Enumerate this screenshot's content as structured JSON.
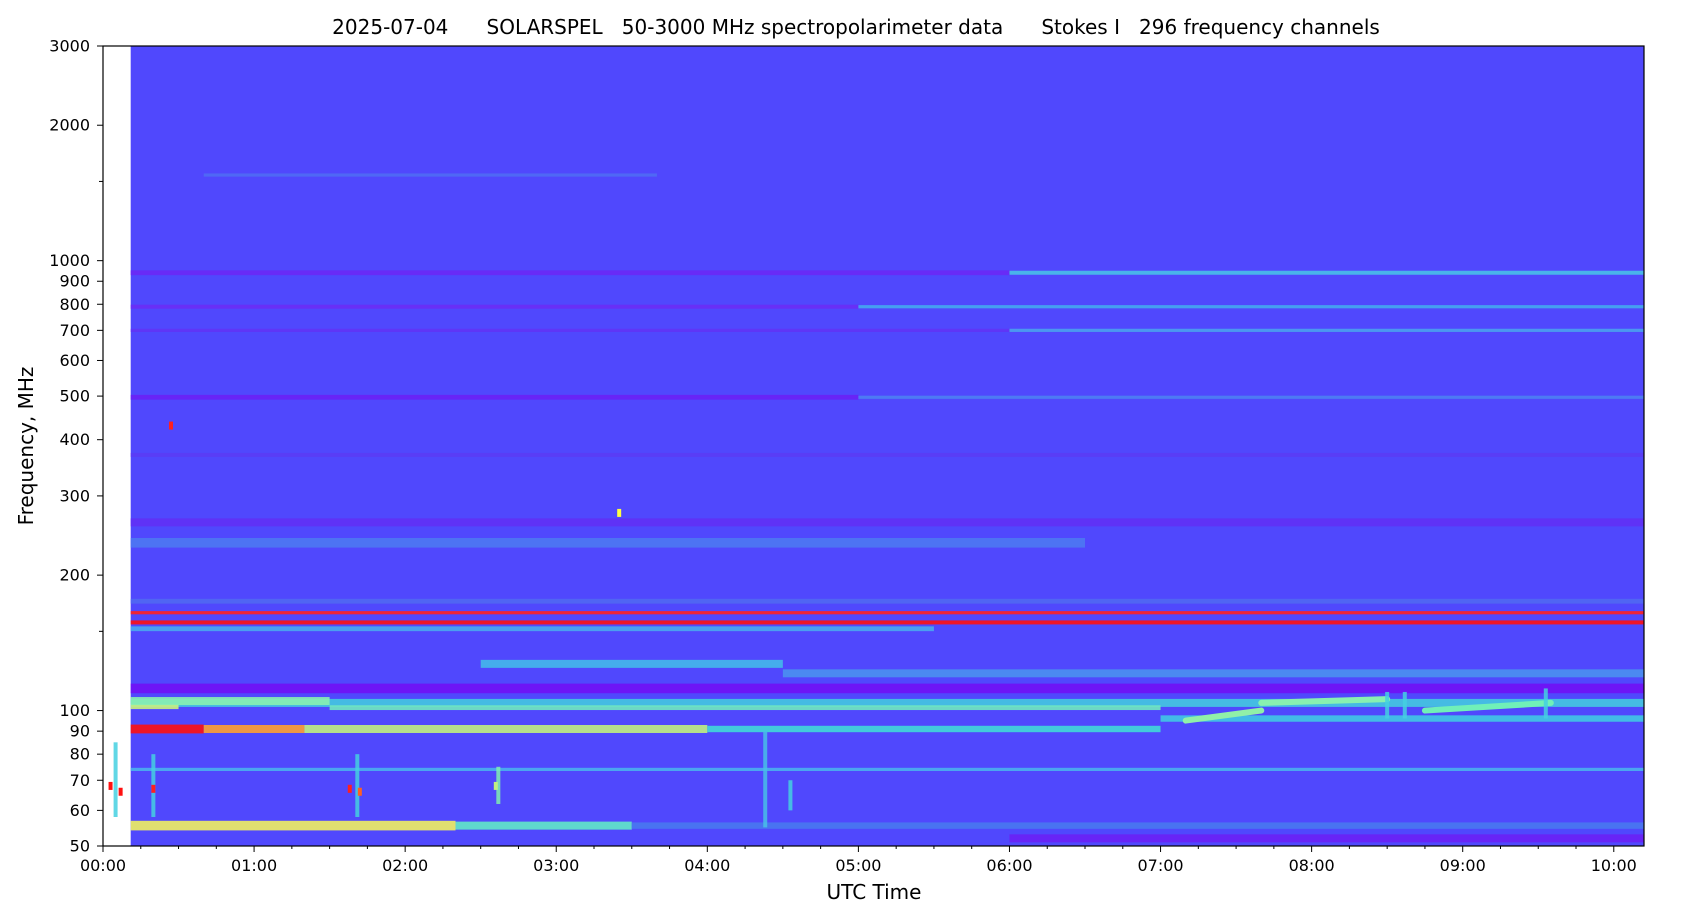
{
  "chart_data": {
    "type": "heatmap",
    "title": "2025-07-04      SOLARSPEL   50-3000 MHz spectropolarimeter data      Stokes I   296 frequency channels",
    "xlabel": "UTC Time",
    "ylabel": "Frequency, MHz",
    "y_scale": "log",
    "ylim": [
      50,
      3000
    ],
    "xlim": [
      "00:00",
      "10:12"
    ],
    "data_start": "00:11",
    "x_ticks": [
      "00:00",
      "01:00",
      "02:00",
      "03:00",
      "04:00",
      "05:00",
      "06:00",
      "07:00",
      "08:00",
      "09:00",
      "10:00"
    ],
    "y_ticks": [
      50,
      60,
      70,
      80,
      90,
      100,
      200,
      300,
      400,
      500,
      600,
      700,
      800,
      900,
      1000,
      2000,
      3000
    ],
    "y_minor_ticks": [
      150,
      1500
    ],
    "colormap": "rainbow",
    "background_color": "#5048fd",
    "bands": [
      {
        "f": 1550,
        "w": 0.004,
        "c": "#4f6cf4",
        "x": [
          "00:40",
          "03:40"
        ]
      },
      {
        "f": 940,
        "w": 0.006,
        "c": "#6a28f5",
        "x": [
          "00:11",
          "06:00"
        ]
      },
      {
        "f": 940,
        "w": 0.005,
        "c": "#48c0e8",
        "x": [
          "06:00",
          "10:12"
        ]
      },
      {
        "f": 790,
        "w": 0.005,
        "c": "#6a2cf5",
        "x": [
          "00:11",
          "05:00"
        ]
      },
      {
        "f": 790,
        "w": 0.004,
        "c": "#44a8ee",
        "x": [
          "05:00",
          "10:12"
        ]
      },
      {
        "f": 700,
        "w": 0.004,
        "c": "#6034f5",
        "x": [
          "00:11",
          "06:00"
        ]
      },
      {
        "f": 700,
        "w": 0.004,
        "c": "#4aa0ee",
        "x": [
          "06:00",
          "10:12"
        ]
      },
      {
        "f": 497,
        "w": 0.006,
        "c": "#6a20f5",
        "x": [
          "00:11",
          "05:00"
        ]
      },
      {
        "f": 497,
        "w": 0.004,
        "c": "#4c80f2",
        "x": [
          "05:00",
          "10:12"
        ]
      },
      {
        "f": 370,
        "w": 0.005,
        "c": "#5a3cf5",
        "x": [
          "00:11",
          "10:12"
        ]
      },
      {
        "f": 262,
        "w": 0.01,
        "c": "#6030f5",
        "x": [
          "00:11",
          "10:12"
        ]
      },
      {
        "f": 236,
        "w": 0.012,
        "c": "#4c78f2",
        "x": [
          "00:11",
          "06:30"
        ]
      },
      {
        "f": 175,
        "w": 0.006,
        "c": "#5068f2",
        "x": [
          "00:11",
          "10:12"
        ]
      },
      {
        "f": 165,
        "w": 0.004,
        "c": "#ff2020",
        "x": [
          "00:11",
          "10:12"
        ]
      },
      {
        "f": 157,
        "w": 0.005,
        "c": "#ff1010",
        "x": [
          "00:11",
          "10:12"
        ]
      },
      {
        "f": 152,
        "w": 0.006,
        "c": "#4aa8ee",
        "x": [
          "00:11",
          "05:30"
        ]
      },
      {
        "f": 127,
        "w": 0.01,
        "c": "#44b8ea",
        "x": [
          "02:30",
          "04:30"
        ]
      },
      {
        "f": 121,
        "w": 0.01,
        "c": "#4a90ef",
        "x": [
          "04:30",
          "10:12"
        ]
      },
      {
        "f": 112,
        "w": 0.012,
        "c": "#7010f5",
        "x": [
          "00:11",
          "10:12"
        ]
      },
      {
        "f": 104,
        "w": 0.01,
        "c": "#44c8e0",
        "x": [
          "00:11",
          "10:12"
        ]
      },
      {
        "f": 102,
        "w": 0.006,
        "c": "#c8f080",
        "x": [
          "00:11",
          "00:30"
        ]
      },
      {
        "f": 105,
        "w": 0.01,
        "c": "#88f0b0",
        "x": [
          "00:11",
          "01:30"
        ]
      },
      {
        "f": 101.5,
        "w": 0.006,
        "c": "#70e8c0",
        "x": [
          "01:30",
          "07:00"
        ]
      },
      {
        "f": 91,
        "w": 0.011,
        "c": "#ff1010",
        "x": [
          "00:11",
          "00:40"
        ]
      },
      {
        "f": 91,
        "w": 0.01,
        "c": "#ffa030",
        "x": [
          "00:40",
          "01:20"
        ]
      },
      {
        "f": 91,
        "w": 0.01,
        "c": "#c0f080",
        "x": [
          "01:20",
          "04:00"
        ]
      },
      {
        "f": 91,
        "w": 0.008,
        "c": "#40d8d8",
        "x": [
          "04:00",
          "07:00"
        ]
      },
      {
        "f": 96,
        "w": 0.008,
        "c": "#40c8e4",
        "x": [
          "07:00",
          "10:12"
        ]
      },
      {
        "f": 74,
        "w": 0.004,
        "c": "#4ab0ee",
        "x": [
          "00:11",
          "10:12"
        ]
      },
      {
        "f": 55.5,
        "w": 0.012,
        "c": "#f0f060",
        "x": [
          "00:11",
          "02:20"
        ]
      },
      {
        "f": 55.5,
        "w": 0.01,
        "c": "#60e8c8",
        "x": [
          "02:20",
          "03:30"
        ]
      },
      {
        "f": 55.5,
        "w": 0.008,
        "c": "#4878f0",
        "x": [
          "03:30",
          "10:12"
        ]
      },
      {
        "f": 52,
        "w": 0.01,
        "c": "#6a20f5",
        "x": [
          "06:00",
          "10:12"
        ]
      }
    ],
    "drift_features": [
      {
        "start": "07:10",
        "end": "07:40",
        "f_start": 95,
        "f_end": 100,
        "c": "#90f0a8"
      },
      {
        "start": "07:40",
        "end": "08:30",
        "f_start": 104,
        "f_end": 106,
        "c": "#88f0b0"
      },
      {
        "start": "08:45",
        "end": "09:35",
        "f_start": 100,
        "f_end": 104,
        "c": "#70f0b8"
      }
    ],
    "vertical_bursts": [
      {
        "t": "00:05",
        "f": [
          58,
          85
        ],
        "c": "#44d0e0"
      },
      {
        "t": "00:20",
        "f": [
          58,
          80
        ],
        "c": "#44d0e0"
      },
      {
        "t": "01:41",
        "f": [
          58,
          80
        ],
        "c": "#44d0e0"
      },
      {
        "t": "02:37",
        "f": [
          62,
          75
        ],
        "c": "#80f0b0"
      },
      {
        "t": "04:23",
        "f": [
          55,
          90
        ],
        "c": "#48c0e8"
      },
      {
        "t": "04:33",
        "f": [
          60,
          70
        ],
        "c": "#44d0e0"
      },
      {
        "t": "08:30",
        "f": [
          96,
          110
        ],
        "c": "#44d0e0"
      },
      {
        "t": "08:37",
        "f": [
          96,
          110
        ],
        "c": "#44d0e0"
      },
      {
        "t": "09:33",
        "f": [
          96,
          112
        ],
        "c": "#44d0e0"
      }
    ],
    "hot_spots": [
      {
        "t": "00:03",
        "f": 68,
        "c": "#ff1010"
      },
      {
        "t": "00:07",
        "f": 66,
        "c": "#ff1010"
      },
      {
        "t": "00:20",
        "f": 67,
        "c": "#ff2020"
      },
      {
        "t": "01:38",
        "f": 67,
        "c": "#ff2020"
      },
      {
        "t": "01:42",
        "f": 66,
        "c": "#ff6020"
      },
      {
        "t": "00:27",
        "f": 430,
        "c": "#ff2020"
      },
      {
        "t": "03:25",
        "f": 275,
        "c": "#ffff40"
      },
      {
        "t": "02:36",
        "f": 68,
        "c": "#c0f080"
      }
    ]
  }
}
